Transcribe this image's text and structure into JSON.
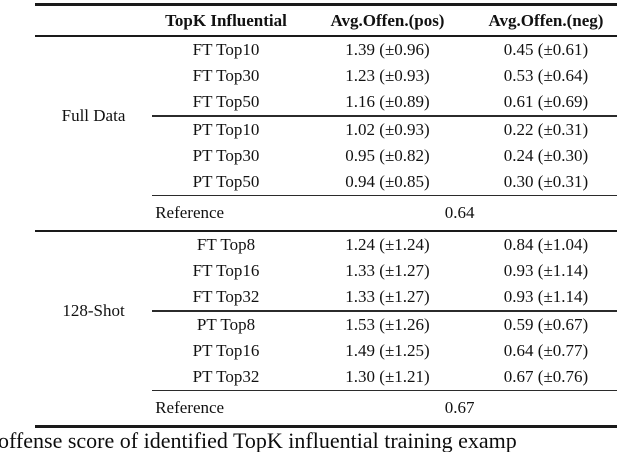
{
  "table": {
    "headers": [
      "TopK Influential",
      "Avg.Offen.(pos)",
      "Avg.Offen.(neg)"
    ],
    "sections": [
      {
        "group_label": "Full Data",
        "subgroups": [
          {
            "rows": [
              [
                "FT Top10",
                "1.39 (±0.96)",
                "0.45 (±0.61)"
              ],
              [
                "FT Top30",
                "1.23 (±0.93)",
                "0.53 (±0.64)"
              ],
              [
                "FT Top50",
                "1.16 (±0.89)",
                "0.61 (±0.69)"
              ]
            ]
          },
          {
            "rows": [
              [
                "PT Top10",
                "1.02 (±0.93)",
                "0.22 (±0.31)"
              ],
              [
                "PT Top30",
                "0.95 (±0.82)",
                "0.24 (±0.30)"
              ],
              [
                "PT Top50",
                "0.94 (±0.85)",
                "0.30 (±0.31)"
              ]
            ]
          }
        ],
        "reference_label": "Reference",
        "reference_value": "0.64"
      },
      {
        "group_label": "128-Shot",
        "subgroups": [
          {
            "rows": [
              [
                "FT Top8",
                "1.24 (±1.24)",
                "0.84 (±1.04)"
              ],
              [
                "FT Top16",
                "1.33 (±1.27)",
                "0.93 (±1.14)"
              ],
              [
                "FT Top32",
                "1.33 (±1.27)",
                "0.93 (±1.14)"
              ]
            ]
          },
          {
            "rows": [
              [
                "PT Top8",
                "1.53 (±1.26)",
                "0.59 (±0.67)"
              ],
              [
                "PT Top16",
                "1.49 (±1.25)",
                "0.64 (±0.77)"
              ],
              [
                "PT Top32",
                "1.30 (±1.21)",
                "0.67 (±0.76)"
              ]
            ]
          }
        ],
        "reference_label": "Reference",
        "reference_value": "0.67"
      }
    ]
  },
  "caption": {
    "text": "offense score of identified TopK influential training examp"
  }
}
